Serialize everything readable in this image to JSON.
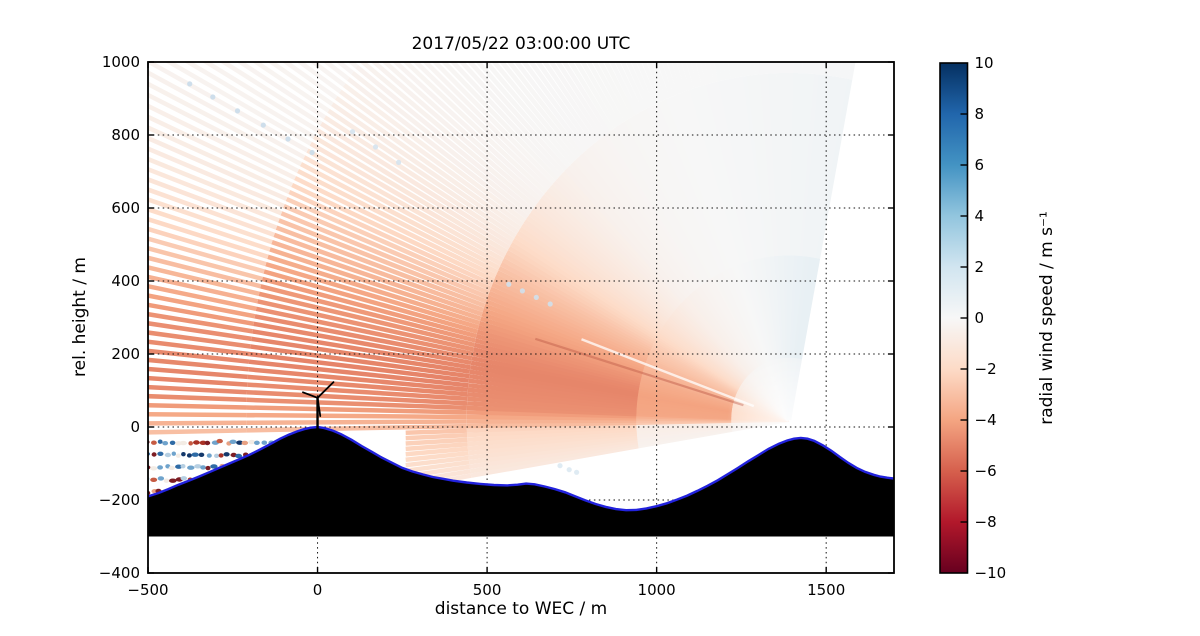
{
  "title": "2017/05/22 03:00:00 UTC",
  "axes": {
    "xlabel": "distance to WEC / m",
    "ylabel": "rel. height / m",
    "xlim": [
      -500,
      1700
    ],
    "ylim": [
      -400,
      1000
    ],
    "xticks": [
      {
        "v": -500,
        "label": "−500"
      },
      {
        "v": 0,
        "label": "0"
      },
      {
        "v": 500,
        "label": "500"
      },
      {
        "v": 1000,
        "label": "1000"
      },
      {
        "v": 1500,
        "label": "1500"
      }
    ],
    "yticks": [
      {
        "v": 1000,
        "label": "1000"
      },
      {
        "v": 800,
        "label": "800"
      },
      {
        "v": 600,
        "label": "600"
      },
      {
        "v": 400,
        "label": "400"
      },
      {
        "v": 200,
        "label": "200"
      },
      {
        "v": 0,
        "label": "0"
      },
      {
        "v": -200,
        "label": "−200"
      },
      {
        "v": -400,
        "label": "−400"
      }
    ],
    "grid_x": [
      0,
      500,
      1000,
      1500
    ],
    "grid_y": [
      -200,
      0,
      200,
      400,
      600,
      800
    ],
    "grid_style": "dotted"
  },
  "colorbar": {
    "label": "radial wind speed / m s⁻¹",
    "range": [
      -10,
      10
    ],
    "ticks": [
      {
        "v": 10,
        "label": "10"
      },
      {
        "v": 8,
        "label": "8"
      },
      {
        "v": 6,
        "label": "6"
      },
      {
        "v": 4,
        "label": "4"
      },
      {
        "v": 2,
        "label": "2"
      },
      {
        "v": 0,
        "label": "0"
      },
      {
        "v": -2,
        "label": "−2"
      },
      {
        "v": -4,
        "label": "−4"
      },
      {
        "v": -6,
        "label": "−6"
      },
      {
        "v": -8,
        "label": "−8"
      },
      {
        "v": -10,
        "label": "−10"
      }
    ]
  },
  "chart_data": {
    "type": "heatmap",
    "title": "2017/05/22 03:00:00 UTC",
    "xlabel": "distance to WEC / m",
    "ylabel": "rel. height / m",
    "colorbar_label": "radial wind speed / m s⁻¹",
    "value_range": [
      -10,
      10
    ],
    "colormap": [
      [
        -10,
        "#67001f"
      ],
      [
        -8,
        "#b2182b"
      ],
      [
        -6,
        "#d6604d"
      ],
      [
        -4,
        "#f4a582"
      ],
      [
        -2,
        "#fddbc7"
      ],
      [
        0,
        "#f7f7f7"
      ],
      [
        2,
        "#d1e5f0"
      ],
      [
        4,
        "#92c5de"
      ],
      [
        6,
        "#4393c3"
      ],
      [
        8,
        "#2166ac"
      ],
      [
        10,
        "#053061"
      ]
    ],
    "scan": {
      "origin_x": 1390,
      "origin_h": 20,
      "elev_min": -9.3,
      "elev_max": 101.4,
      "elev_step": 0.75
    },
    "wind_field": {
      "base_by_elev": [
        [
          -9.5,
          -1.6
        ],
        [
          -6.5,
          -2.2
        ],
        [
          -4,
          -2.6
        ],
        [
          -2.2,
          -2.9
        ],
        [
          -1,
          -3.4
        ],
        [
          2,
          -4.9
        ],
        [
          9,
          -5.0
        ],
        [
          15,
          -4.5
        ],
        [
          21,
          -3.8
        ],
        [
          27,
          -3.0
        ],
        [
          33,
          -2.1
        ],
        [
          39,
          -1.4
        ],
        [
          47,
          -0.7
        ],
        [
          57,
          -0.3
        ],
        [
          68,
          -0.05
        ],
        [
          78,
          0.25
        ],
        [
          86,
          0.55
        ],
        [
          94,
          0.85
        ],
        [
          101.5,
          1.05
        ]
      ],
      "scale_by_height": [
        [
          -260,
          0.5
        ],
        [
          -120,
          0.78
        ],
        [
          0,
          0.92
        ],
        [
          160,
          1.0
        ],
        [
          320,
          0.93
        ],
        [
          480,
          0.7
        ],
        [
          620,
          0.45
        ],
        [
          760,
          0.27
        ],
        [
          900,
          0.16
        ],
        [
          1010,
          0.11
        ]
      ]
    },
    "terrain_base": -300,
    "terrain_profile": [
      [
        -500,
        -190
      ],
      [
        -470,
        -181
      ],
      [
        -440,
        -170
      ],
      [
        -410,
        -158
      ],
      [
        -380,
        -147
      ],
      [
        -350,
        -136
      ],
      [
        -320,
        -124
      ],
      [
        -290,
        -112
      ],
      [
        -260,
        -100
      ],
      [
        -230,
        -88
      ],
      [
        -200,
        -76
      ],
      [
        -170,
        -62
      ],
      [
        -140,
        -47
      ],
      [
        -110,
        -32
      ],
      [
        -85,
        -21
      ],
      [
        -60,
        -12
      ],
      [
        -40,
        -6
      ],
      [
        -20,
        -2
      ],
      [
        0,
        0
      ],
      [
        20,
        -3
      ],
      [
        45,
        -10
      ],
      [
        70,
        -20
      ],
      [
        100,
        -35
      ],
      [
        130,
        -52
      ],
      [
        160,
        -68
      ],
      [
        190,
        -84
      ],
      [
        220,
        -98
      ],
      [
        250,
        -112
      ],
      [
        280,
        -122
      ],
      [
        310,
        -130
      ],
      [
        340,
        -137
      ],
      [
        370,
        -142
      ],
      [
        400,
        -147
      ],
      [
        440,
        -152
      ],
      [
        480,
        -156
      ],
      [
        520,
        -159
      ],
      [
        560,
        -160
      ],
      [
        590,
        -158
      ],
      [
        615,
        -155
      ],
      [
        640,
        -157
      ],
      [
        670,
        -163
      ],
      [
        700,
        -170
      ],
      [
        730,
        -179
      ],
      [
        760,
        -190
      ],
      [
        790,
        -201
      ],
      [
        820,
        -211
      ],
      [
        850,
        -219
      ],
      [
        880,
        -225
      ],
      [
        910,
        -228
      ],
      [
        940,
        -227
      ],
      [
        970,
        -223
      ],
      [
        1000,
        -217
      ],
      [
        1030,
        -209
      ],
      [
        1060,
        -199
      ],
      [
        1090,
        -188
      ],
      [
        1120,
        -175
      ],
      [
        1150,
        -161
      ],
      [
        1180,
        -146
      ],
      [
        1210,
        -129
      ],
      [
        1240,
        -112
      ],
      [
        1270,
        -94
      ],
      [
        1300,
        -77
      ],
      [
        1330,
        -60
      ],
      [
        1360,
        -46
      ],
      [
        1385,
        -37
      ],
      [
        1405,
        -32
      ],
      [
        1425,
        -30
      ],
      [
        1445,
        -32
      ],
      [
        1465,
        -38
      ],
      [
        1490,
        -50
      ],
      [
        1515,
        -65
      ],
      [
        1540,
        -82
      ],
      [
        1565,
        -98
      ],
      [
        1590,
        -112
      ],
      [
        1615,
        -123
      ],
      [
        1640,
        -131
      ],
      [
        1660,
        -136
      ],
      [
        1680,
        -139
      ],
      [
        1700,
        -141
      ]
    ],
    "terrain_outline_color": "#2222dd",
    "turbine": {
      "x": 0,
      "base_h": -3,
      "hub_h": 80,
      "blade_tips": [
        [
          47,
          123
        ],
        [
          -43,
          95
        ],
        [
          8,
          30
        ]
      ]
    },
    "noise_rows": [
      {
        "h": -42,
        "x0": -500,
        "x1": -140
      },
      {
        "h": -76,
        "x0": -500,
        "x1": -206
      },
      {
        "h": -110,
        "x0": -500,
        "x1": -278
      },
      {
        "h": -144,
        "x0": -500,
        "x1": -366
      },
      {
        "h": -178,
        "x0": -500,
        "x1": -452
      }
    ],
    "noise_palette": [
      [
        "#7c1d24",
        0.2
      ],
      [
        "#a93226",
        0.12
      ],
      [
        "#c65b43",
        0.09
      ],
      [
        "#e8a183",
        0.07
      ],
      [
        "#f3ece5",
        0.1
      ],
      [
        "#b6cfe2",
        0.12
      ],
      [
        "#6fa3cc",
        0.1
      ],
      [
        "#2f6ba5",
        0.11
      ],
      [
        "#14386b",
        0.09
      ]
    ],
    "streaks": [
      {
        "elev": 16.5,
        "r0": 140,
        "r1": 780,
        "color": "#c2604b",
        "width": 2.2,
        "opacity": 0.5
      },
      {
        "elev": 19.8,
        "r0": 110,
        "r1": 650,
        "color": "#ffffff",
        "width": 2.4,
        "opacity": 0.75
      }
    ],
    "speckles": [
      {
        "color": "#c9dcea",
        "points": [
          [
            -16,
            752
          ],
          [
            -87,
            789
          ],
          [
            -160,
            827
          ],
          [
            -236,
            866
          ],
          [
            -309,
            904
          ],
          [
            -377,
            940
          ]
        ]
      },
      {
        "color": "#cfe0ec",
        "points": [
          [
            686,
            337
          ],
          [
            645,
            355
          ],
          [
            604,
            373
          ],
          [
            564,
            391
          ]
        ]
      },
      {
        "color": "#d5e3ee",
        "points": [
          [
            239,
            725
          ],
          [
            171,
            767
          ],
          [
            103,
            809
          ]
        ]
      },
      {
        "color": "#dce9f2",
        "points": [
          [
            715,
            -106
          ],
          [
            742,
            -117
          ],
          [
            764,
            -124
          ]
        ]
      }
    ]
  }
}
